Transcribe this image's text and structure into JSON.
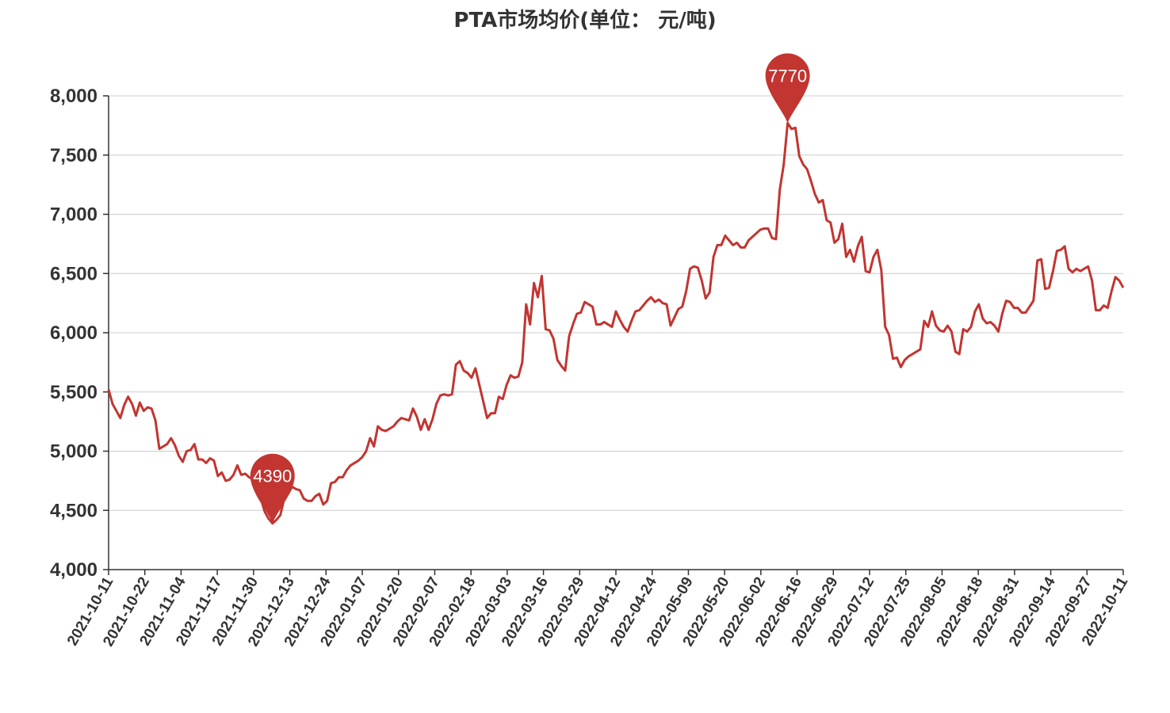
{
  "chart_data": {
    "type": "line",
    "title": "PTA市场均价(单位： 元/吨)",
    "xlabel": "",
    "ylabel": "",
    "ylim": [
      4000,
      8000
    ],
    "yticks": [
      "4,000",
      "4,500",
      "5,000",
      "5,500",
      "6,000",
      "6,500",
      "7,000",
      "7,500",
      "8,000"
    ],
    "xtick_labels": [
      "2021-10-11",
      "2021-10-22",
      "2021-11-04",
      "2021-11-17",
      "2021-11-30",
      "2021-12-13",
      "2021-12-24",
      "2022-01-07",
      "2022-01-20",
      "2022-02-07",
      "2022-02-18",
      "2022-03-03",
      "2022-03-16",
      "2022-03-29",
      "2022-04-12",
      "2022-04-24",
      "2022-05-09",
      "2022-05-20",
      "2022-06-02",
      "2022-06-16",
      "2022-06-29",
      "2022-07-12",
      "2022-07-25",
      "2022-08-05",
      "2022-08-18",
      "2022-08-31",
      "2022-09-14",
      "2022-09-27",
      "2022-10-11"
    ],
    "grid": true,
    "legend": "none",
    "line_color": "#c23531",
    "series": [
      {
        "values": [
          5520,
          5400,
          5340,
          5280,
          5390,
          5460,
          5400,
          5300,
          5410,
          5340,
          5370,
          5360,
          5260,
          5020,
          5040,
          5060,
          5110,
          5050,
          4960,
          4910,
          5000,
          5010,
          5060,
          4930,
          4930,
          4900,
          4940,
          4920,
          4790,
          4820,
          4750,
          4760,
          4800,
          4880,
          4800,
          4810,
          4780,
          4760,
          4720,
          4600,
          4490,
          4430,
          4390,
          4420,
          4460,
          4600,
          4640,
          4700,
          4680,
          4670,
          4600,
          4580,
          4580,
          4620,
          4640,
          4550,
          4580,
          4730,
          4740,
          4780,
          4780,
          4840,
          4880,
          4900,
          4920,
          4950,
          5000,
          5110,
          5040,
          5210,
          5180,
          5170,
          5190,
          5210,
          5250,
          5280,
          5270,
          5260,
          5360,
          5290,
          5180,
          5270,
          5180,
          5270,
          5400,
          5470,
          5480,
          5470,
          5480,
          5730,
          5760,
          5680,
          5660,
          5620,
          5700,
          5560,
          5420,
          5280,
          5320,
          5320,
          5460,
          5440,
          5560,
          5640,
          5620,
          5630,
          5750,
          6240,
          6070,
          6420,
          6300,
          6480,
          6030,
          6020,
          5950,
          5770,
          5720,
          5680,
          5970,
          6070,
          6160,
          6170,
          6260,
          6240,
          6220,
          6070,
          6070,
          6090,
          6070,
          6050,
          6180,
          6110,
          6050,
          6010,
          6100,
          6180,
          6190,
          6230,
          6270,
          6300,
          6260,
          6280,
          6250,
          6240,
          6060,
          6130,
          6200,
          6220,
          6350,
          6540,
          6560,
          6550,
          6440,
          6290,
          6340,
          6640,
          6740,
          6740,
          6820,
          6780,
          6740,
          6760,
          6720,
          6720,
          6780,
          6810,
          6840,
          6870,
          6880,
          6880,
          6800,
          6790,
          7210,
          7420,
          7770,
          7720,
          7730,
          7490,
          7420,
          7380,
          7280,
          7170,
          7100,
          7120,
          6950,
          6930,
          6760,
          6790,
          6920,
          6640,
          6700,
          6600,
          6730,
          6810,
          6520,
          6510,
          6640,
          6700,
          6530,
          6050,
          5980,
          5780,
          5790,
          5710,
          5770,
          5800,
          5820,
          5840,
          5860,
          6100,
          6050,
          6180,
          6060,
          6020,
          6010,
          6060,
          6010,
          5840,
          5820,
          6030,
          6010,
          6050,
          6180,
          6240,
          6120,
          6080,
          6090,
          6060,
          6010,
          6160,
          6270,
          6260,
          6210,
          6210,
          6170,
          6170,
          6220,
          6270,
          6610,
          6620,
          6370,
          6380,
          6520,
          6690,
          6700,
          6730,
          6540,
          6510,
          6540,
          6520,
          6540,
          6560,
          6440,
          6190,
          6190,
          6230,
          6210,
          6350,
          6470,
          6440,
          6380
        ]
      }
    ],
    "annotations": [
      {
        "type": "max",
        "label": "7770",
        "value": 7770
      },
      {
        "type": "min",
        "label": "4390",
        "value": 4390
      }
    ]
  }
}
